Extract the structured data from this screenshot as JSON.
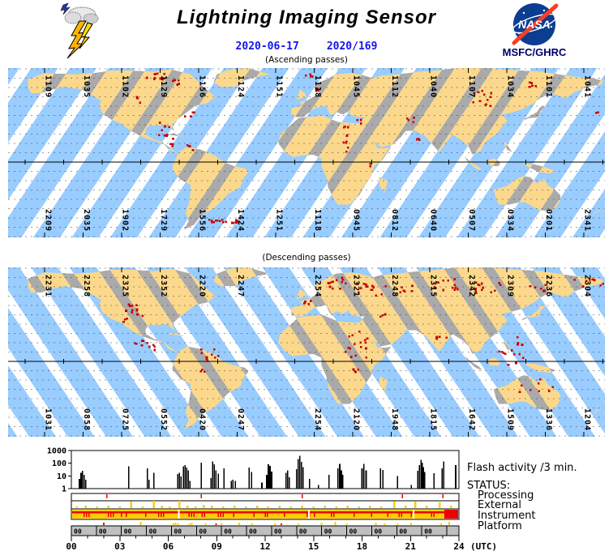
{
  "header": {
    "title": "Lightning Imaging Sensor",
    "date": "2020-06-17",
    "day_of_year": "2020/169",
    "agency": "MSFC/GHRC",
    "nasa_logo_text": "NASA",
    "ascending_caption": "(Ascending passes)",
    "descending_caption": "(Descending passes)"
  },
  "colors": {
    "swath_ocean": "#99CCFF",
    "swath_land": "#FBD88C",
    "land": "#AAAAAA",
    "ocean": "#FFFFFF",
    "flash_dot": "#C80000",
    "date_text": "#1414EE",
    "agency_text": "#00006E",
    "status_yellow": "#FFCC00",
    "status_red": "#EE0000",
    "platform_strip": "#BFBFBF",
    "nasa_blue": "#0B3D91",
    "nasa_red": "#FC3D21"
  },
  "maps": {
    "ascending": {
      "top_labels": [
        "1109",
        "1035",
        "1102",
        "1129",
        "1156",
        "1124",
        "1151",
        "1118",
        "1045",
        "1112",
        "1040",
        "1107",
        "1034",
        "1101",
        "1041"
      ],
      "bottom_labels": [
        "2209",
        "2035",
        "1902",
        "1729",
        "1556",
        "1424",
        "1251",
        "1118",
        "0945",
        "0812",
        "0640",
        "0507",
        "0334",
        "0201",
        "2341"
      ],
      "flash_clusters": [
        [
          180,
          8,
          10,
          12,
          5
        ],
        [
          205,
          17,
          5,
          8,
          4
        ],
        [
          160,
          38,
          3,
          6,
          4
        ],
        [
          223,
          57,
          4,
          6,
          4
        ],
        [
          193,
          75,
          8,
          10,
          9
        ],
        [
          203,
          90,
          4,
          6,
          5
        ],
        [
          222,
          98,
          4,
          5,
          4
        ],
        [
          261,
          188,
          16,
          21,
          2
        ],
        [
          415,
          87,
          10,
          3,
          16
        ],
        [
          433,
          64,
          3,
          4,
          3
        ],
        [
          367,
          7,
          5,
          8,
          3
        ],
        [
          382,
          24,
          3,
          4,
          3
        ],
        [
          497,
          63,
          4,
          6,
          3
        ],
        [
          505,
          86,
          3,
          4,
          4
        ],
        [
          582,
          36,
          12,
          13,
          10
        ],
        [
          646,
          20,
          5,
          6,
          4
        ],
        [
          727,
          53,
          2,
          3,
          3
        ],
        [
          444,
          120,
          2,
          3,
          3
        ]
      ]
    },
    "descending": {
      "top_labels": [
        "2231",
        "2258",
        "2325",
        "2352",
        "2220",
        "2247",
        null,
        "2254",
        "2321",
        "2248",
        "2315",
        "2342",
        "2309",
        "2236",
        "2304"
      ],
      "bottom_labels": [
        "1031",
        "0858",
        "0725",
        "0552",
        "0420",
        "0247",
        null,
        "2254",
        "2120",
        "1948",
        "1815",
        "1642",
        "1509",
        "1336",
        "1204"
      ],
      "flash_clusters": [
        [
          152,
          55,
          14,
          16,
          12
        ],
        [
          167,
          90,
          10,
          14,
          12
        ],
        [
          248,
          107,
          9,
          12,
          10
        ],
        [
          240,
          125,
          3,
          5,
          5
        ],
        [
          402,
          18,
          12,
          14,
          8
        ],
        [
          447,
          24,
          14,
          18,
          10
        ],
        [
          490,
          26,
          6,
          8,
          6
        ],
        [
          537,
          20,
          12,
          18,
          8
        ],
        [
          597,
          26,
          14,
          22,
          9
        ],
        [
          652,
          22,
          6,
          10,
          6
        ],
        [
          715,
          17,
          8,
          18,
          6
        ],
        [
          428,
          95,
          16,
          16,
          20
        ],
        [
          425,
          130,
          4,
          6,
          6
        ],
        [
          458,
          60,
          4,
          6,
          4
        ],
        [
          532,
          85,
          5,
          8,
          5
        ],
        [
          620,
          110,
          10,
          16,
          12
        ],
        [
          630,
          90,
          4,
          5,
          5
        ],
        [
          642,
          145,
          6,
          14,
          8
        ],
        [
          670,
          148,
          3,
          6,
          4
        ],
        [
          368,
          40,
          4,
          6,
          4
        ]
      ]
    }
  },
  "chart_data": {
    "type": "bar",
    "title": "Flash activity /3 min.",
    "status_title": "STATUS:",
    "status_rows": [
      "Processing",
      "External",
      "Instrument",
      "Platform"
    ],
    "x_unit": "(UTC)",
    "x_ticks": [
      "00",
      "03",
      "06",
      "09",
      "12",
      "15",
      "18",
      "21",
      "24"
    ],
    "xlim": [
      0,
      24
    ],
    "y_ticks": [
      "1000",
      "100",
      "10",
      "1"
    ],
    "ylim_log": [
      1,
      1000
    ],
    "bars": [
      [
        0.5,
        6
      ],
      [
        0.6,
        18
      ],
      [
        0.7,
        25
      ],
      [
        0.8,
        12
      ],
      [
        0.9,
        5
      ],
      [
        3.55,
        55
      ],
      [
        4.7,
        40
      ],
      [
        4.8,
        5
      ],
      [
        5.1,
        17
      ],
      [
        6.6,
        14
      ],
      [
        6.7,
        18
      ],
      [
        6.8,
        9
      ],
      [
        6.95,
        55
      ],
      [
        7.05,
        70
      ],
      [
        7.15,
        45
      ],
      [
        7.25,
        28
      ],
      [
        7.35,
        4
      ],
      [
        8.05,
        110
      ],
      [
        8.65,
        7
      ],
      [
        8.75,
        140
      ],
      [
        8.85,
        80
      ],
      [
        8.95,
        28
      ],
      [
        9.1,
        15
      ],
      [
        9.45,
        40
      ],
      [
        9.9,
        4
      ],
      [
        10.0,
        5
      ],
      [
        10.15,
        4
      ],
      [
        11.0,
        45
      ],
      [
        11.15,
        20
      ],
      [
        11.8,
        3
      ],
      [
        12.1,
        12
      ],
      [
        12.2,
        80
      ],
      [
        12.3,
        60
      ],
      [
        12.4,
        22
      ],
      [
        13.3,
        18
      ],
      [
        13.4,
        28
      ],
      [
        13.5,
        8
      ],
      [
        13.95,
        35
      ],
      [
        14.05,
        220
      ],
      [
        14.15,
        380
      ],
      [
        14.25,
        130
      ],
      [
        14.35,
        50
      ],
      [
        14.75,
        6
      ],
      [
        15.3,
        2
      ],
      [
        15.95,
        12
      ],
      [
        16.5,
        40
      ],
      [
        16.62,
        90
      ],
      [
        16.72,
        28
      ],
      [
        16.8,
        12
      ],
      [
        18.0,
        40
      ],
      [
        18.12,
        90
      ],
      [
        18.25,
        28
      ],
      [
        19.15,
        40
      ],
      [
        19.3,
        30
      ],
      [
        20.2,
        10
      ],
      [
        21.05,
        2
      ],
      [
        21.45,
        25
      ],
      [
        21.55,
        70
      ],
      [
        21.65,
        180
      ],
      [
        21.72,
        110
      ],
      [
        21.8,
        50
      ],
      [
        21.88,
        20
      ],
      [
        22.45,
        16
      ],
      [
        22.95,
        40
      ],
      [
        23.05,
        140
      ],
      [
        23.8,
        70
      ]
    ],
    "processing_ticks": [
      2.2,
      8.05,
      14.3,
      20.5,
      23.0
    ],
    "external_bumps": [
      [
        0.35,
        2
      ],
      [
        0.9,
        3
      ],
      [
        1.6,
        2
      ],
      [
        2.3,
        3
      ],
      [
        3.0,
        2
      ],
      [
        3.7,
        8
      ],
      [
        4.4,
        2
      ],
      [
        5.1,
        9
      ],
      [
        5.6,
        3
      ],
      [
        6.1,
        2
      ],
      [
        6.7,
        9
      ],
      [
        7.2,
        3
      ],
      [
        7.7,
        2
      ],
      [
        8.2,
        4
      ],
      [
        8.7,
        3
      ],
      [
        9.4,
        2
      ],
      [
        10.1,
        3
      ],
      [
        10.8,
        2
      ],
      [
        11.5,
        3
      ],
      [
        12.2,
        2
      ],
      [
        12.9,
        3
      ],
      [
        13.6,
        2
      ],
      [
        14.3,
        3
      ],
      [
        15.0,
        2
      ],
      [
        15.7,
        3
      ],
      [
        16.4,
        2
      ],
      [
        17.1,
        3
      ],
      [
        17.8,
        2
      ],
      [
        18.5,
        3
      ],
      [
        19.2,
        2
      ],
      [
        20.0,
        8
      ],
      [
        20.7,
        3
      ],
      [
        21.3,
        8
      ],
      [
        22.0,
        3
      ],
      [
        22.8,
        7
      ],
      [
        23.5,
        3
      ]
    ],
    "instrument": {
      "tick_hours": [
        0.8,
        0.95,
        1.1,
        2.3,
        2.45,
        2.6,
        3.1,
        3.4,
        4.6,
        5.4,
        5.55,
        5.7,
        7.3,
        7.45,
        7.6,
        8.1,
        8.25,
        9.1,
        9.25,
        9.4,
        10.05,
        11.3,
        12.0,
        12.15,
        13.2,
        14.6,
        14.75,
        15.05,
        16.1,
        16.25,
        17.5,
        18.6,
        19.6,
        20.3,
        20.45,
        21.05,
        22.3,
        22.45
      ],
      "gap_hours": [
        6.65,
        14.7,
        21.2
      ],
      "outage": [
        23.1,
        24
      ]
    },
    "platform_ticks": [
      [
        2.0,
        3,
        "r"
      ],
      [
        4.3,
        4,
        "y"
      ],
      [
        6.3,
        2,
        "y"
      ],
      [
        6.45,
        3,
        "y"
      ],
      [
        6.6,
        2,
        "y"
      ],
      [
        7.3,
        2,
        "y"
      ],
      [
        7.45,
        3,
        "y"
      ],
      [
        8.3,
        2,
        "y"
      ],
      [
        8.95,
        2,
        "r"
      ],
      [
        9.3,
        2,
        "y"
      ],
      [
        10.4,
        3,
        "y"
      ],
      [
        11.2,
        2,
        "y"
      ],
      [
        12.6,
        2,
        "y"
      ],
      [
        13.0,
        2,
        "r"
      ],
      [
        14.05,
        2,
        "y"
      ],
      [
        15.5,
        3,
        "y"
      ],
      [
        16.35,
        4,
        "y"
      ],
      [
        17.05,
        2,
        "y"
      ],
      [
        18.85,
        3,
        "y"
      ],
      [
        19.4,
        2,
        "y"
      ],
      [
        20.2,
        2,
        "y"
      ],
      [
        21.05,
        3,
        "y"
      ],
      [
        22.9,
        2,
        "y"
      ],
      [
        23.4,
        4,
        "y"
      ]
    ],
    "platform_cells": {
      "period_h": 1.55,
      "label": "00",
      "labeled_cells": 15
    }
  }
}
